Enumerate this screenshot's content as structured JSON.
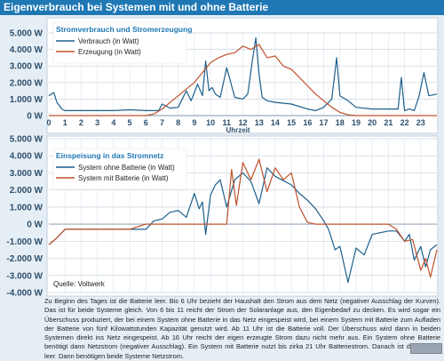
{
  "title": "Eigenverbrauch bei Systemen mit und ohne Batterie",
  "caption": "Zu Beginn des Tages ist die Batterie leer. Bis 6 Uhr bezieht der Haushalt den Strom aus dem Netz (negativer Ausschlag der Kurven). Das ist für beide Systeme gleich. Von 6 bis 11 reicht der Strom der Solaranlage aus, den Eigenbedarf zu decken. Es wird sogar ein Überschuss produziert, der bei einem System ohne Batterie in das Netz eingespeist wird, bei einem System mit Batterie zum Aufladen der Batterie von fünf Kilowattstunden Kapazität genutzt wird. Ab 11 Uhr ist die Batterie voll. Der Überschuss wird dann in beiden Systemen direkt ins Netz eingespeist. Ab 16 Uhr reicht der eigen erzeugte Strom dazu nicht mehr aus. Ein System ohne Batterie benötigt dann Netzstrom (negativer Ausschlag). Ein System mit Batterie nutzt bis zirka 21 Uhr Batteriestrom. Danach ist die Batterie leer. Dann benötigen beide Systeme Netzstrom.",
  "source": "Quelle: Voltwerk",
  "colors": {
    "blue": "#1c5e8c",
    "red": "#c0502a",
    "title_bg": "#1f78b4"
  },
  "chart_data": [
    {
      "type": "line",
      "title": "Stromverbrauch und Stromerzeugung",
      "xlabel": "Uhrzeit",
      "ylabel": "",
      "xlim": [
        0,
        24
      ],
      "ylim": [
        0,
        5000
      ],
      "yticks": [
        0,
        1000,
        2000,
        3000,
        4000,
        5000
      ],
      "ytick_labels": [
        "0 W",
        "1.000 W",
        "2.000 W",
        "3.000 W",
        "4.000 W",
        "5.000 W"
      ],
      "xticks": [
        0,
        1,
        2,
        3,
        4,
        5,
        6,
        7,
        8,
        9,
        10,
        11,
        12,
        13,
        14,
        15,
        16,
        17,
        18,
        19,
        20,
        21,
        22,
        23
      ],
      "grid": true,
      "legend_position": "top-left",
      "series": [
        {
          "name": "Verbrauch (in Watt)",
          "color": "#1c5e8c",
          "x": [
            0,
            0.3,
            0.5,
            0.8,
            1,
            2,
            3,
            4,
            5,
            6,
            6.8,
            7,
            7.5,
            8,
            8.5,
            8.8,
            9,
            9.2,
            9.5,
            9.7,
            9.9,
            10.1,
            10.3,
            10.6,
            11,
            11.5,
            12,
            12.3,
            12.6,
            12.8,
            13,
            13.2,
            13.5,
            14,
            15,
            16,
            16.5,
            17,
            17.5,
            17.8,
            18,
            18.5,
            19,
            20,
            21,
            21.6,
            21.8,
            22,
            22.3,
            22.6,
            22.9,
            23.2,
            23.5,
            24
          ],
          "y": [
            1200,
            1400,
            800,
            400,
            300,
            300,
            300,
            300,
            350,
            300,
            300,
            700,
            450,
            500,
            1500,
            900,
            1400,
            1900,
            1200,
            3300,
            1500,
            1700,
            1300,
            1100,
            2900,
            1100,
            1000,
            1300,
            3400,
            4700,
            2500,
            1100,
            900,
            800,
            700,
            400,
            300,
            500,
            1000,
            3500,
            1200,
            900,
            500,
            400,
            400,
            400,
            2300,
            300,
            400,
            300,
            1200,
            2600,
            1200,
            1300
          ]
        },
        {
          "name": "Erzeugung (in Watt)",
          "color": "#c0502a",
          "x": [
            0,
            6,
            6.5,
            7,
            8,
            9,
            9.5,
            10,
            10.5,
            11,
            11.5,
            12,
            12.5,
            13,
            13.5,
            14,
            14.5,
            15,
            15.5,
            16,
            16.5,
            17,
            17.5,
            18,
            18.5,
            19,
            24
          ],
          "y": [
            0,
            0,
            100,
            400,
            1200,
            2000,
            2600,
            3200,
            3500,
            3700,
            3800,
            4200,
            4000,
            4300,
            3500,
            3600,
            3000,
            2800,
            2300,
            1800,
            1300,
            900,
            500,
            200,
            50,
            0,
            0
          ]
        }
      ]
    },
    {
      "type": "line",
      "title": "Einspeisung in das Stromnetz",
      "xlabel": "",
      "ylabel": "",
      "xlim": [
        0,
        24
      ],
      "ylim": [
        -4000,
        5000
      ],
      "yticks": [
        -4000,
        -3000,
        -2000,
        -1000,
        0,
        1000,
        2000,
        3000,
        4000,
        5000
      ],
      "ytick_labels": [
        "-4.000 W",
        "-3.000 W",
        "-2.000 W",
        "-1.000 W",
        "0 W",
        "1.000 W",
        "2.000 W",
        "3.000 W",
        "4.000 W",
        "5.000 W"
      ],
      "grid": true,
      "legend_position": "top-left",
      "series": [
        {
          "name": "System ohne Batterie (in Watt)",
          "color": "#1c5e8c",
          "x": [
            0,
            0.5,
            1,
            2,
            3,
            4,
            5,
            6,
            6.5,
            7,
            7.5,
            8,
            8.5,
            9,
            9.3,
            9.5,
            9.7,
            10,
            10.3,
            10.6,
            11,
            11.5,
            12,
            12.5,
            13,
            13.5,
            14,
            15,
            15.5,
            16,
            16.5,
            17,
            17.3,
            17.7,
            18,
            18.5,
            19,
            19.5,
            20,
            21,
            21.5,
            22,
            22.3,
            22.6,
            23,
            23.3,
            23.6,
            24
          ],
          "y": [
            -1200,
            -800,
            -300,
            -300,
            -300,
            -300,
            -300,
            -300,
            200,
            300,
            700,
            800,
            400,
            1800,
            900,
            1300,
            -600,
            1700,
            2300,
            2600,
            1000,
            2600,
            3000,
            2500,
            1200,
            3300,
            2800,
            2300,
            1800,
            1400,
            900,
            200,
            -300,
            -1500,
            -1300,
            -3400,
            -1400,
            -1800,
            -600,
            -400,
            -400,
            -1000,
            -600,
            -2100,
            -1300,
            -2500,
            -1500,
            -1200
          ]
        },
        {
          "name": "System mit Batterie (in Watt)",
          "color": "#c0502a",
          "x": [
            0,
            0.5,
            1,
            2,
            3,
            4,
            5,
            6,
            7,
            8,
            9,
            10,
            11,
            11.3,
            11.6,
            12,
            12.5,
            13,
            13.5,
            14,
            14.5,
            15,
            15.5,
            16,
            16.5,
            17,
            18,
            19,
            20,
            21,
            21.5,
            22,
            22.5,
            23,
            23.3,
            23.6,
            24
          ],
          "y": [
            -1200,
            -800,
            -300,
            -300,
            -300,
            -300,
            -300,
            0,
            0,
            0,
            0,
            0,
            0,
            3200,
            1100,
            3600,
            2600,
            3800,
            1900,
            3300,
            2600,
            3000,
            1000,
            100,
            0,
            0,
            0,
            0,
            0,
            0,
            -300,
            -1000,
            -900,
            -2700,
            -2000,
            -3100,
            -1500
          ]
        }
      ]
    }
  ]
}
